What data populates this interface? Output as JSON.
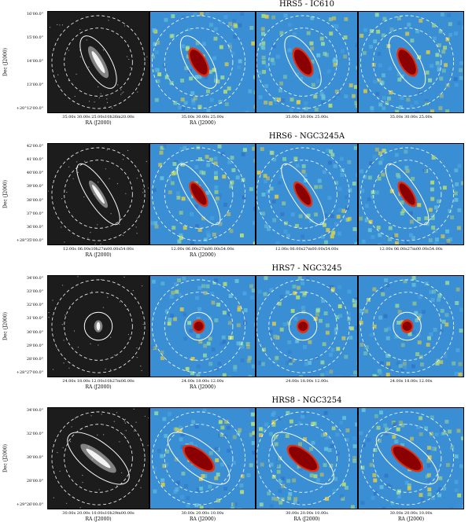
{
  "rows": [
    {
      "title": "HRS5 - IC610",
      "ylabel": "Dec (J2000)",
      "yticks": [
        "16'00.0\"",
        "15'00.0\"",
        "14'00.0\"",
        "13'00.0\"",
        "+20°12'00.0\""
      ],
      "xticks_first": "35.00s   30.00s   25.00s10h26m20.00s",
      "xticks": [
        "35.00s   30.00s   25.00s",
        "35.00s   30.00s   25.00s",
        "35.00s   30.00s   25.00s"
      ],
      "xlabels": [
        "RA (J2000)",
        "RA (J2000)",
        "",
        ""
      ]
    },
    {
      "title": "HRS6 - NGC3245A",
      "ylabel": "Dec (J2000)",
      "yticks": [
        "42'00.0\"",
        "41'00.0\"",
        "40'00.0\"",
        "39'00.0\"",
        "38'00.0\"",
        "37'00.0\"",
        "36'00.0\"",
        "+28°35'00.0\""
      ],
      "xticks_first": "12.00s  06.00s10h27m00.00s54.00s",
      "xticks": [
        "12.00s  06.00s27m00.00s54.00s",
        "12.00s  06.00s27m00.00s54.00s",
        "12.00s  06.00s27m00.00s54.00s"
      ],
      "xlabels": [
        "RA (J2000)",
        "RA (J2000)",
        "",
        ""
      ]
    },
    {
      "title": "HRS7 - NGC3245",
      "ylabel": "Dec (J2000)",
      "yticks": [
        "34'00.0\"",
        "33'00.0\"",
        "32'00.0\"",
        "31'00.0\"",
        "30'00.0\"",
        "29'00.0\"",
        "28'00.0\"",
        "+28°27'00.0\""
      ],
      "xticks_first": "24.00s  18.00s  12.00s10h27m06.00s",
      "xticks": [
        "24.00s  18.00s  12.00s",
        "24.00s  18.00s  12.00s",
        "24.00s  18.00s  12.00s"
      ],
      "xlabels": [
        "RA (J2000)",
        "RA (J2000)",
        "",
        ""
      ]
    },
    {
      "title": "HRS8 - NGC3254",
      "ylabel": "Dec (J2000)",
      "yticks": [
        "34'00.0\"",
        "32'00.0\"",
        "30'00.0\"",
        "28'00.0\"",
        "+29°26'00.0\""
      ],
      "xticks_first": "30.00s   20.00s   10.00s10h29m00.00s",
      "xticks": [
        "30.00s   20.00s   10.00s",
        "30.00s   20.00s   10.00s",
        "30.00s   20.00s   10.00s"
      ],
      "xlabels": [
        "RA (J2000)",
        "RA (J2000)",
        "RA (J2000)",
        "RA (J2000)"
      ]
    }
  ],
  "colors": {
    "optical_bg": "#1c1c1c",
    "map_bg": "#3a8fd4",
    "source_core": "#8b0000",
    "source_mid": "#e03010"
  }
}
